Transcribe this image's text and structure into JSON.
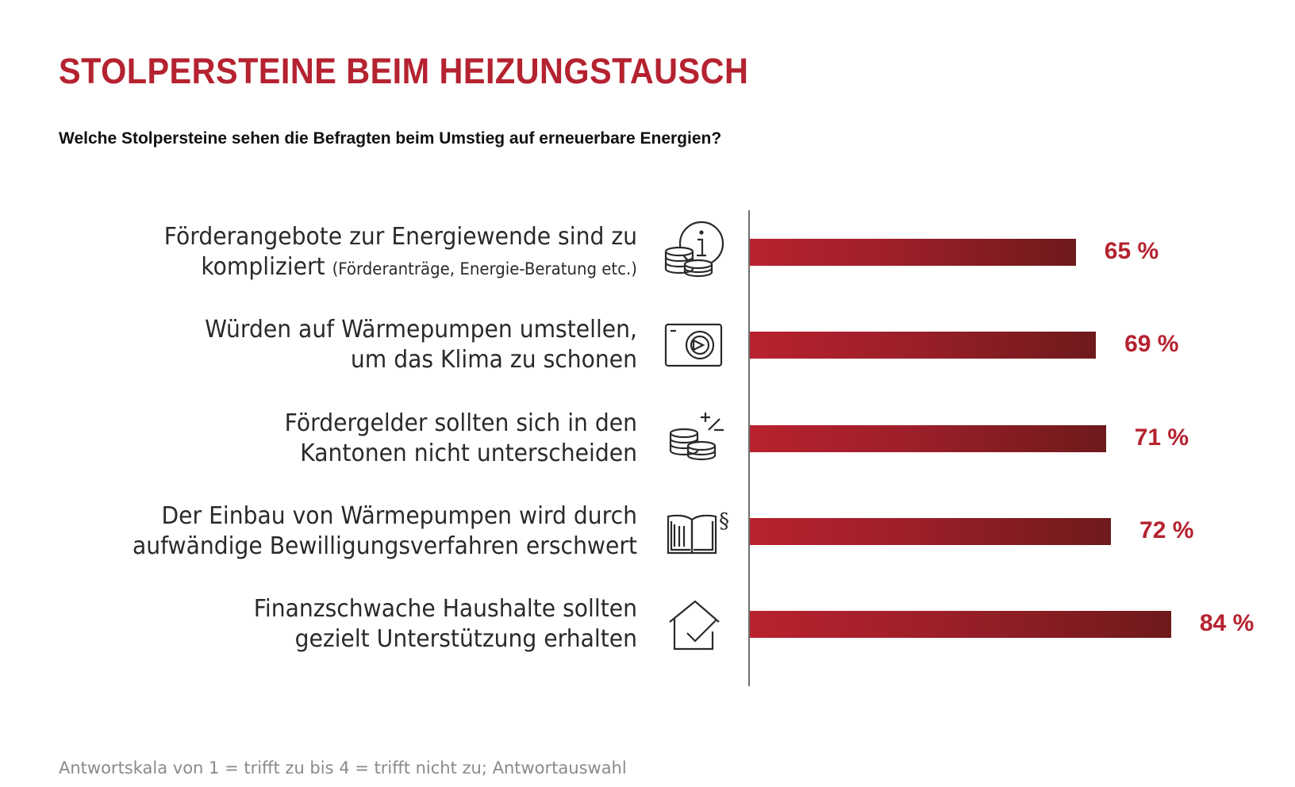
{
  "title": "STOLPERSTEINE BEIM HEIZUNGSTAUSCH",
  "subtitle": "Welche Stolpersteine sehen die Befragten beim Umstieg auf erneuerbare Energien?",
  "footnote": "Antwortskala von 1 = trifft zu bis 4 = trifft nicht zu; Antwortauswahl",
  "colors": {
    "accent": "#b52230",
    "bar_start": "#b8222e",
    "bar_end": "#6e1a1c",
    "axis": "#6f6f6f"
  },
  "chart_data": {
    "type": "bar",
    "orientation": "horizontal",
    "categories": [
      "Förderangebote zur Energiewende sind zu kompliziert (Förderanträge, Energie-Beratung etc.)",
      "Würden auf Wärmepumpen umstellen, um das Klima zu schonen",
      "Fördergelder sollten sich in den Kantonen nicht unterscheiden",
      "Der Einbau von Wärmepumpen wird durch aufwändige Bewilligungsverfahren erschwert",
      "Finanzschwache Haushalte sollten gezielt Unterstützung erhalten"
    ],
    "values": [
      65,
      69,
      71,
      72,
      84
    ],
    "value_labels": [
      "65 %",
      "69 %",
      "71 %",
      "72 %",
      "84 %"
    ],
    "unit": "%",
    "rows": [
      {
        "lines": [
          "Förderangebote zur Energiewende sind zu"
        ],
        "line2_main": "kompliziert",
        "line2_sub": "(Förderanträge, Energie-Beratung etc.)",
        "icon": "coins-info-icon",
        "value": 65,
        "label": "65 %"
      },
      {
        "lines": [
          "Würden auf Wärmepumpen umstellen,",
          "um das Klima zu schonen"
        ],
        "icon": "heat-pump-icon",
        "value": 69,
        "label": "69 %"
      },
      {
        "lines": [
          "Fördergelder sollten sich in den",
          "Kantonen nicht unterscheiden"
        ],
        "icon": "coins-plus-minus-icon",
        "value": 71,
        "label": "71 %"
      },
      {
        "lines": [
          "Der Einbau von Wärmepumpen wird durch",
          "aufwändige Bewilligungsverfahren erschwert"
        ],
        "icon": "law-book-icon",
        "value": 72,
        "label": "72 %"
      },
      {
        "lines": [
          "Finanzschwache Haushalte sollten",
          "gezielt Unterstützung erhalten"
        ],
        "icon": "house-check-icon",
        "value": 84,
        "label": "84 %"
      }
    ],
    "legend": "none",
    "grid": false
  }
}
